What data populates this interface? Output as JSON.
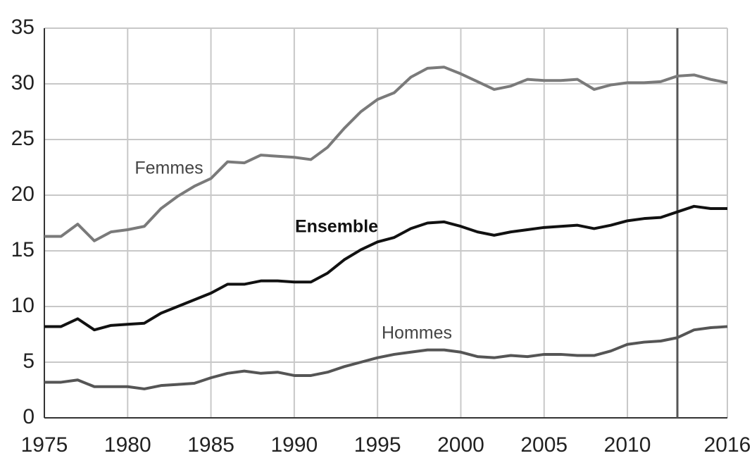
{
  "chart_data": {
    "type": "line",
    "x": [
      1975,
      1976,
      1977,
      1978,
      1979,
      1980,
      1981,
      1982,
      1983,
      1984,
      1985,
      1986,
      1987,
      1988,
      1989,
      1990,
      1991,
      1992,
      1993,
      1994,
      1995,
      1996,
      1997,
      1998,
      1999,
      2000,
      2001,
      2002,
      2003,
      2004,
      2005,
      2006,
      2007,
      2008,
      2009,
      2010,
      2011,
      2012,
      2013,
      2014,
      2015,
      2016
    ],
    "series": [
      {
        "name": "Femmes",
        "color": "#7a7a7a",
        "values": [
          16.3,
          16.3,
          17.4,
          15.9,
          16.7,
          16.9,
          17.2,
          18.8,
          19.9,
          20.8,
          21.5,
          23.0,
          22.9,
          23.6,
          23.5,
          23.4,
          23.2,
          24.3,
          26.0,
          27.5,
          28.6,
          29.2,
          30.6,
          31.4,
          31.5,
          30.9,
          30.2,
          29.5,
          29.8,
          30.4,
          30.3,
          30.3,
          30.4,
          29.5,
          29.9,
          30.1,
          30.1,
          30.2,
          30.7,
          30.8,
          30.4,
          30.1
        ]
      },
      {
        "name": "Ensemble",
        "color": "#111111",
        "values": [
          8.2,
          8.2,
          8.9,
          7.9,
          8.3,
          8.4,
          8.5,
          9.4,
          10.0,
          10.6,
          11.2,
          12.0,
          12.0,
          12.3,
          12.3,
          12.2,
          12.2,
          13.0,
          14.2,
          15.1,
          15.8,
          16.2,
          17.0,
          17.5,
          17.6,
          17.2,
          16.7,
          16.4,
          16.7,
          16.9,
          17.1,
          17.2,
          17.3,
          17.0,
          17.3,
          17.7,
          17.9,
          18.0,
          18.5,
          19.0,
          18.8,
          18.8
        ]
      },
      {
        "name": "Hommes",
        "color": "#555555",
        "values": [
          3.2,
          3.2,
          3.4,
          2.8,
          2.8,
          2.8,
          2.6,
          2.9,
          3.0,
          3.1,
          3.6,
          4.0,
          4.2,
          4.0,
          4.1,
          3.8,
          3.8,
          4.1,
          4.6,
          5.0,
          5.4,
          5.7,
          5.9,
          6.1,
          6.1,
          5.9,
          5.5,
          5.4,
          5.6,
          5.5,
          5.7,
          5.7,
          5.6,
          5.6,
          6.0,
          6.6,
          6.8,
          6.9,
          7.2,
          7.9,
          8.1,
          8.2
        ]
      }
    ],
    "xlim": [
      1975,
      2016
    ],
    "xticks": [
      1975,
      1980,
      1985,
      1990,
      1995,
      2000,
      2005,
      2010,
      2016
    ],
    "ylim": [
      0,
      35
    ],
    "yticks": [
      0,
      5,
      10,
      15,
      20,
      25,
      30,
      35
    ],
    "grid": true,
    "vline": 2013
  }
}
